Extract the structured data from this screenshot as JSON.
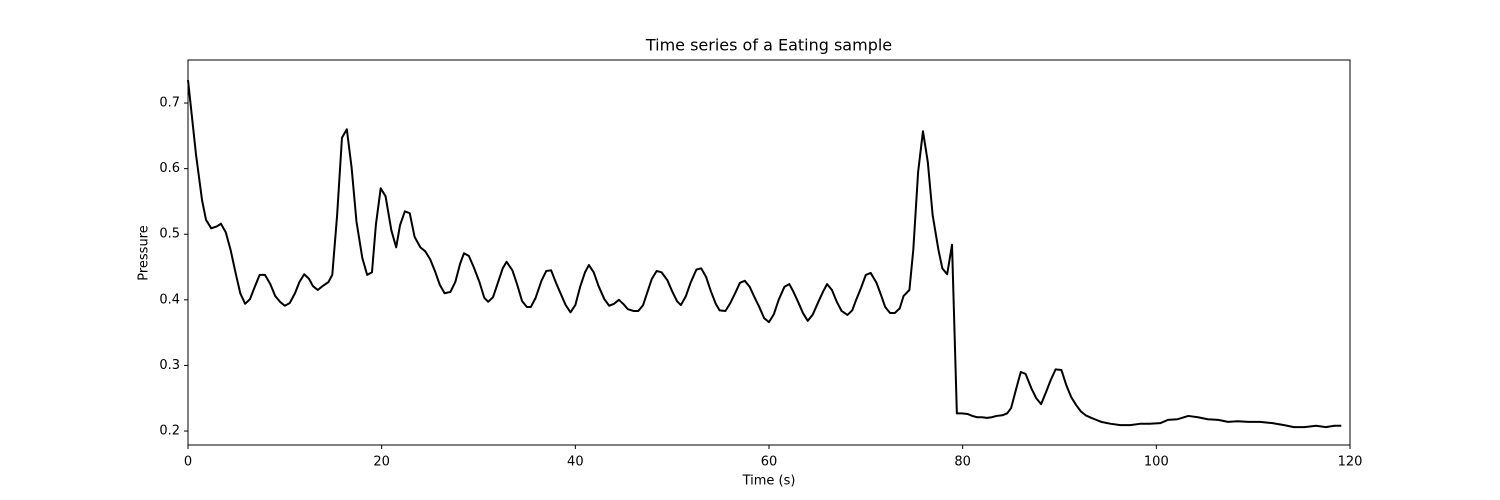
{
  "chart_data": {
    "type": "line",
    "title": "Time series of a Eating sample",
    "x_label": "Time (s)",
    "y_label": "Pressure",
    "color": "#000000",
    "x": [
      0,
      0.83,
      1.45,
      1.86,
      2.4,
      3.0,
      3.4,
      3.9,
      4.4,
      4.96,
      5.4,
      5.9,
      6.4,
      6.9,
      7.4,
      7.95,
      8.5,
      9.0,
      9.5,
      10.0,
      10.5,
      11.05,
      11.5,
      12.0,
      12.5,
      12.9,
      13.4,
      13.9,
      14.5,
      14.9,
      15.4,
      15.9,
      16.4,
      16.9,
      17.4,
      18.0,
      18.5,
      19.0,
      19.4,
      19.9,
      20.4,
      21.0,
      21.5,
      21.9,
      22.4,
      22.9,
      23.4,
      24.0,
      24.5,
      25.0,
      25.5,
      26.0,
      26.5,
      27.1,
      27.6,
      28.1,
      28.5,
      29.0,
      29.5,
      30.1,
      30.6,
      31.0,
      31.5,
      32.0,
      32.5,
      32.9,
      33.5,
      34.0,
      34.5,
      35.0,
      35.4,
      35.9,
      36.5,
      37.0,
      37.5,
      38.0,
      38.5,
      39.0,
      39.5,
      40.0,
      40.5,
      41.0,
      41.4,
      41.9,
      42.4,
      43.0,
      43.5,
      44.0,
      44.5,
      45.0,
      45.4,
      46.0,
      46.5,
      47.0,
      47.4,
      47.9,
      48.4,
      48.9,
      49.5,
      50.0,
      50.5,
      50.9,
      51.4,
      51.9,
      52.5,
      53.0,
      53.5,
      54.0,
      54.5,
      54.9,
      55.5,
      56.0,
      56.5,
      57.0,
      57.5,
      58.0,
      58.5,
      59.0,
      59.5,
      60.0,
      60.5,
      61.0,
      61.6,
      62.1,
      62.5,
      63.0,
      63.5,
      64.0,
      64.5,
      65.1,
      65.6,
      66.0,
      66.5,
      67.0,
      67.5,
      68.1,
      68.6,
      69.0,
      69.5,
      70.0,
      70.5,
      71.1,
      71.6,
      72.0,
      72.5,
      73.0,
      73.5,
      73.9,
      74.5,
      74.9,
      75.4,
      75.9,
      76.4,
      76.9,
      77.5,
      77.9,
      78.4,
      78.9,
      79.4,
      79.9,
      80.5,
      81.0,
      81.5,
      82.0,
      82.5,
      83.0,
      83.5,
      84.1,
      84.6,
      85.0,
      85.5,
      86.0,
      86.5,
      87.1,
      87.6,
      88.1,
      88.6,
      89.1,
      89.6,
      90.2,
      90.7,
      91.2,
      91.7,
      92.2,
      92.7,
      93.3,
      93.8,
      94.3,
      95.3,
      96.3,
      97.3,
      98.3,
      99.3,
      100.4,
      101.2,
      102.2,
      103.3,
      104.3,
      105.3,
      106.4,
      107.4,
      108.4,
      109.5,
      110.7,
      112.0,
      113.2,
      114.2,
      115.3,
      116.5,
      117.5,
      118.4,
      119.1
    ],
    "values": [
      0.735,
      0.621,
      0.552,
      0.522,
      0.509,
      0.512,
      0.516,
      0.503,
      0.476,
      0.438,
      0.41,
      0.394,
      0.401,
      0.42,
      0.438,
      0.438,
      0.424,
      0.406,
      0.397,
      0.391,
      0.395,
      0.41,
      0.427,
      0.439,
      0.432,
      0.421,
      0.415,
      0.421,
      0.427,
      0.438,
      0.529,
      0.647,
      0.66,
      0.601,
      0.519,
      0.464,
      0.438,
      0.442,
      0.514,
      0.57,
      0.558,
      0.506,
      0.48,
      0.514,
      0.535,
      0.532,
      0.496,
      0.48,
      0.474,
      0.462,
      0.444,
      0.423,
      0.41,
      0.412,
      0.427,
      0.455,
      0.471,
      0.467,
      0.45,
      0.427,
      0.403,
      0.397,
      0.404,
      0.426,
      0.448,
      0.458,
      0.445,
      0.423,
      0.398,
      0.389,
      0.389,
      0.403,
      0.429,
      0.444,
      0.445,
      0.426,
      0.409,
      0.392,
      0.381,
      0.392,
      0.42,
      0.442,
      0.453,
      0.442,
      0.421,
      0.401,
      0.391,
      0.394,
      0.4,
      0.393,
      0.386,
      0.383,
      0.383,
      0.392,
      0.41,
      0.432,
      0.444,
      0.442,
      0.43,
      0.413,
      0.398,
      0.392,
      0.405,
      0.426,
      0.446,
      0.448,
      0.435,
      0.413,
      0.394,
      0.384,
      0.383,
      0.395,
      0.41,
      0.426,
      0.429,
      0.42,
      0.404,
      0.389,
      0.372,
      0.366,
      0.378,
      0.4,
      0.42,
      0.424,
      0.413,
      0.397,
      0.38,
      0.368,
      0.377,
      0.397,
      0.413,
      0.424,
      0.415,
      0.397,
      0.383,
      0.377,
      0.384,
      0.4,
      0.418,
      0.438,
      0.441,
      0.426,
      0.406,
      0.389,
      0.38,
      0.38,
      0.387,
      0.406,
      0.415,
      0.476,
      0.595,
      0.657,
      0.61,
      0.529,
      0.476,
      0.448,
      0.439,
      0.484,
      0.227,
      0.227,
      0.226,
      0.223,
      0.221,
      0.221,
      0.22,
      0.221,
      0.223,
      0.224,
      0.227,
      0.235,
      0.263,
      0.29,
      0.287,
      0.265,
      0.25,
      0.241,
      0.259,
      0.278,
      0.294,
      0.293,
      0.27,
      0.252,
      0.24,
      0.23,
      0.224,
      0.22,
      0.217,
      0.214,
      0.211,
      0.209,
      0.209,
      0.211,
      0.211,
      0.212,
      0.217,
      0.218,
      0.223,
      0.221,
      0.218,
      0.217,
      0.214,
      0.215,
      0.214,
      0.214,
      0.212,
      0.209,
      0.206,
      0.206,
      0.208,
      0.206,
      0.208,
      0.208
    ],
    "xlim": [
      0,
      120
    ],
    "xticks": [
      0,
      20,
      40,
      60,
      80,
      100,
      120
    ],
    "ylim": [
      0.1787,
      0.7656
    ],
    "yticks": [
      0.2,
      0.3,
      0.4,
      0.5,
      0.6,
      0.7
    ]
  }
}
